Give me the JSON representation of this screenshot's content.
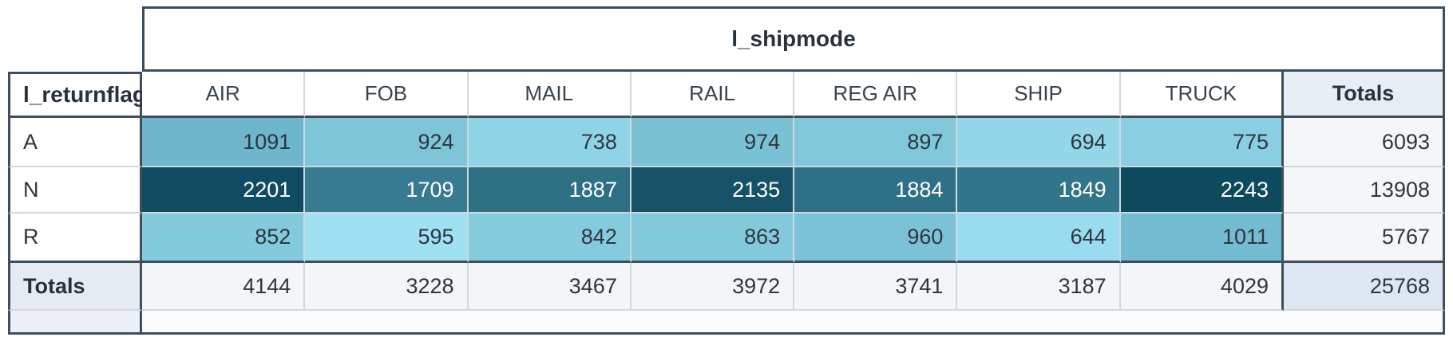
{
  "pivot": {
    "column_group_title": "l_shipmode",
    "row_dimension_title": "l_returnflag",
    "column_headers": [
      "AIR",
      "FOB",
      "MAIL",
      "RAIL",
      "REG AIR",
      "SHIP",
      "TRUCK"
    ],
    "totals_column_header": "Totals",
    "totals_row_label": "Totals",
    "row_labels": [
      "A",
      "N",
      "R"
    ]
  },
  "chart_data": {
    "type": "heatmap",
    "title": "l_shipmode",
    "row_dimension": "l_returnflag",
    "columns": [
      "AIR",
      "FOB",
      "MAIL",
      "RAIL",
      "REG AIR",
      "SHIP",
      "TRUCK"
    ],
    "rows": [
      "A",
      "N",
      "R"
    ],
    "values": [
      [
        1091,
        924,
        738,
        974,
        897,
        694,
        775
      ],
      [
        2201,
        1709,
        1887,
        2135,
        1884,
        1849,
        2243
      ],
      [
        852,
        595,
        842,
        863,
        960,
        644,
        1011
      ]
    ],
    "row_totals": [
      6093,
      13908,
      5767
    ],
    "column_totals": [
      4144,
      3228,
      3467,
      3972,
      3741,
      3187,
      4029
    ],
    "grand_total": 25768,
    "color_scale": {
      "min_value": 595,
      "max_value": 2243,
      "min_color": "#9fe0f3",
      "max_color": "#0c4a5e"
    },
    "legend_position": "none",
    "grid": true
  },
  "heatmap_colors": [
    [
      "#6db6cc",
      "#7ec5d8",
      "#8fd3e6",
      "#7ac1d4",
      "#81c7da",
      "#93d7e9",
      "#8acfe1"
    ],
    [
      "#0f4c61",
      "#387a8f",
      "#2d7084",
      "#155268",
      "#2e7186",
      "#31758a",
      "#0d4a5e"
    ],
    [
      "#84cadd",
      "#9fe0f3",
      "#85cbde",
      "#83c9dc",
      "#7bc2d6",
      "#99dcef",
      "#73bcd1"
    ]
  ],
  "row_text_colors": [
    "#2c3640",
    "#ffffff",
    "#2c3640"
  ],
  "colors": {
    "border_dark": "#3f4e5d",
    "border_light": "#cfd8e1",
    "text_dark": "#2c3640",
    "totals_col_header_bg": "#e8edf3",
    "row_total_bg": "#f4f6f8",
    "totals_row_bg": "#f3f5f8",
    "totals_row_label_bg": "#e6ebf2",
    "grand_total_bg": "#dee7f1",
    "footer_left_bg": "#edf1f7",
    "footer_right_bg": "#fbfcfd",
    "white": "#ffffff"
  }
}
